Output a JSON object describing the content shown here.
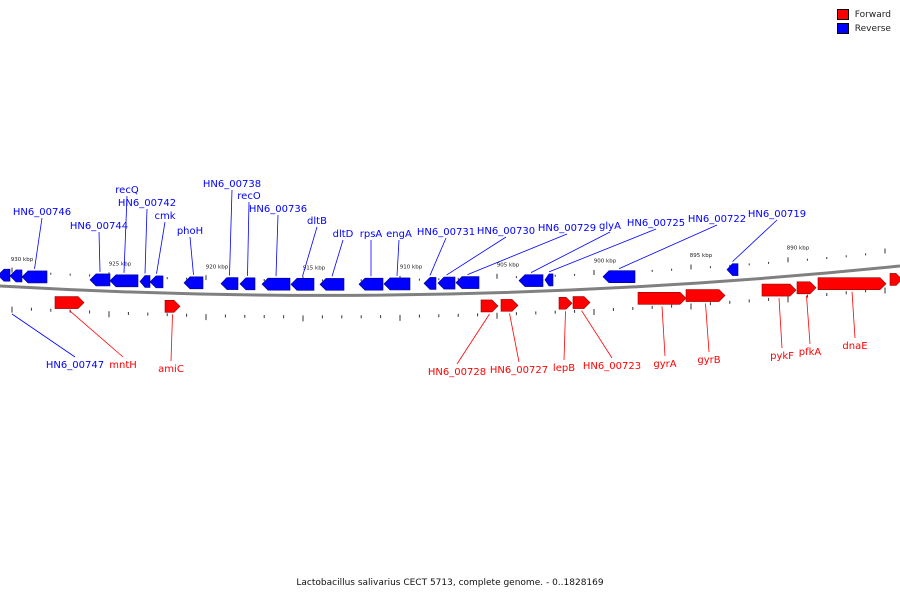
{
  "legend": [
    {
      "label": "Forward",
      "color": "#ff0000"
    },
    {
      "label": "Reverse",
      "color": "#0000ff"
    }
  ],
  "caption": "Lactobacillus salivarius CECT 5713, complete genome. - 0..1828169",
  "colors": {
    "forward": "#ff0000",
    "reverse": "#0000ff",
    "backbone": "#808080"
  },
  "ticks": [
    "930 kbp",
    "925 kbp",
    "920 kbp",
    "915 kbp",
    "910 kbp",
    "905 kbp",
    "900 kbp",
    "895 kbp",
    "890 kbp"
  ],
  "reverse_genes": [
    "HN6_00746",
    "HN6_00744",
    "recQ",
    "HN6_00742",
    "cmk",
    "phoH",
    "HN6_00738",
    "recO",
    "HN6_00736",
    "dltB",
    "dltD",
    "rpsA",
    "engA",
    "HN6_00731",
    "HN6_00730",
    "HN6_00729",
    "glyA",
    "HN6_00725",
    "HN6_00722",
    "HN6_00719",
    "HN6_00747"
  ],
  "forward_genes": [
    "mntH",
    "amiC",
    "HN6_00728",
    "HN6_00727",
    "lepB",
    "HN6_00723",
    "gyrA",
    "gyrB",
    "pykF",
    "pfkA",
    "dnaE"
  ]
}
